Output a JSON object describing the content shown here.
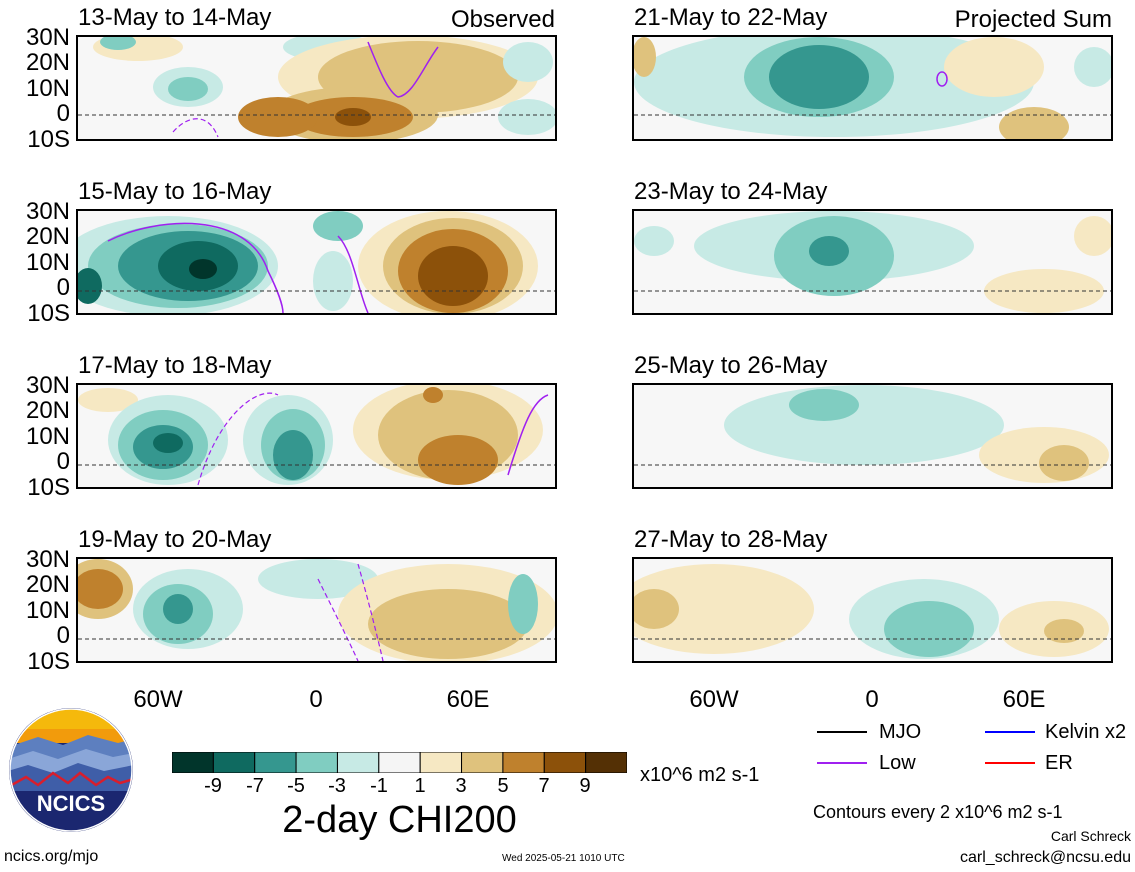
{
  "panels": [
    {
      "title": "13-May to 14-May",
      "tag": "Observed"
    },
    {
      "title": "15-May to 16-May",
      "tag": ""
    },
    {
      "title": "17-May to 18-May",
      "tag": ""
    },
    {
      "title": "19-May to 20-May",
      "tag": ""
    },
    {
      "title": "21-May to 22-May",
      "tag": "Projected Sum"
    },
    {
      "title": "23-May to 24-May",
      "tag": ""
    },
    {
      "title": "25-May to 26-May",
      "tag": ""
    },
    {
      "title": "27-May to 28-May",
      "tag": ""
    }
  ],
  "lat_labels": [
    "30N",
    "20N",
    "10N",
    "0",
    "10S"
  ],
  "lon_labels": [
    "60W",
    "0",
    "60E"
  ],
  "colorbar": {
    "ticks": [
      "-9",
      "-7",
      "-5",
      "-3",
      "-1",
      "1",
      "3",
      "5",
      "7",
      "9"
    ],
    "units": "x10^6 m2 s-1",
    "title": "2-day CHI200",
    "colors": [
      "#01352b",
      "#0f6a60",
      "#35978f",
      "#80cdc1",
      "#c7eae5",
      "#f5f5f5",
      "#f6e8c3",
      "#dfc27d",
      "#bf812d",
      "#8c510a",
      "#543005"
    ]
  },
  "legend": {
    "items": [
      {
        "label": "MJO",
        "color": "#000000"
      },
      {
        "label": "Kelvin x2",
        "color": "#0000ff"
      },
      {
        "label": "Low",
        "color": "#a020f0"
      },
      {
        "label": "ER",
        "color": "#ff0000"
      }
    ],
    "contour_note": "Contours every 2 x10^6 m2 s-1"
  },
  "logo_text": "NCICS",
  "footer": {
    "left": "ncics.org/mjo",
    "center": "Wed 2025-05-21 1010 UTC",
    "author": "Carl Schreck",
    "email": "carl_schreck@ncsu.edu"
  }
}
